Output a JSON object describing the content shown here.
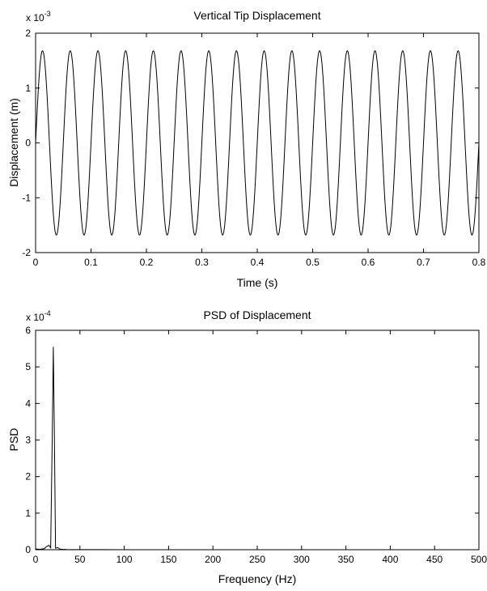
{
  "chart_data": [
    {
      "type": "line",
      "title": "Vertical Tip Displacement",
      "xlabel": "Time (s)",
      "ylabel": "Displacement (m)",
      "exponent_label": "x 10",
      "exponent_power": "-3",
      "xlim": [
        0,
        0.8
      ],
      "ylim": [
        -2,
        2
      ],
      "xticks": [
        "0",
        "0.1",
        "0.2",
        "0.3",
        "0.4",
        "0.5",
        "0.6",
        "0.7",
        "0.8"
      ],
      "yticks": [
        "-2",
        "-1",
        "0",
        "1",
        "2"
      ],
      "grid": false,
      "series": [
        {
          "function": "sine",
          "amplitude": 1.68,
          "frequency_hz": 20,
          "phase": 0,
          "x_start": 0,
          "x_end": 0.8
        }
      ]
    },
    {
      "type": "line",
      "title": "PSD of Displacement",
      "xlabel": "Frequency (Hz)",
      "ylabel": "PSD",
      "exponent_label": "x 10",
      "exponent_power": "-4",
      "xlim": [
        0,
        500
      ],
      "ylim": [
        0,
        6
      ],
      "xticks": [
        "0",
        "50",
        "100",
        "150",
        "200",
        "250",
        "300",
        "350",
        "400",
        "450",
        "500"
      ],
      "yticks": [
        "0",
        "1",
        "2",
        "3",
        "4",
        "5",
        "6"
      ],
      "grid": false,
      "series": [
        {
          "x": [
            0,
            5,
            10,
            12,
            15,
            17,
            18.75,
            20,
            21.25,
            22.5,
            25,
            27,
            30,
            35,
            40,
            50,
            100,
            200,
            300,
            400,
            500
          ],
          "y": [
            0.02,
            0.01,
            0.03,
            0.08,
            0.12,
            0.05,
            3.0,
            5.55,
            3.0,
            0.04,
            0.06,
            0.02,
            0.01,
            0.005,
            0.003,
            0.002,
            0.001,
            0.0,
            0.0,
            0.0,
            0.0
          ]
        }
      ]
    }
  ]
}
